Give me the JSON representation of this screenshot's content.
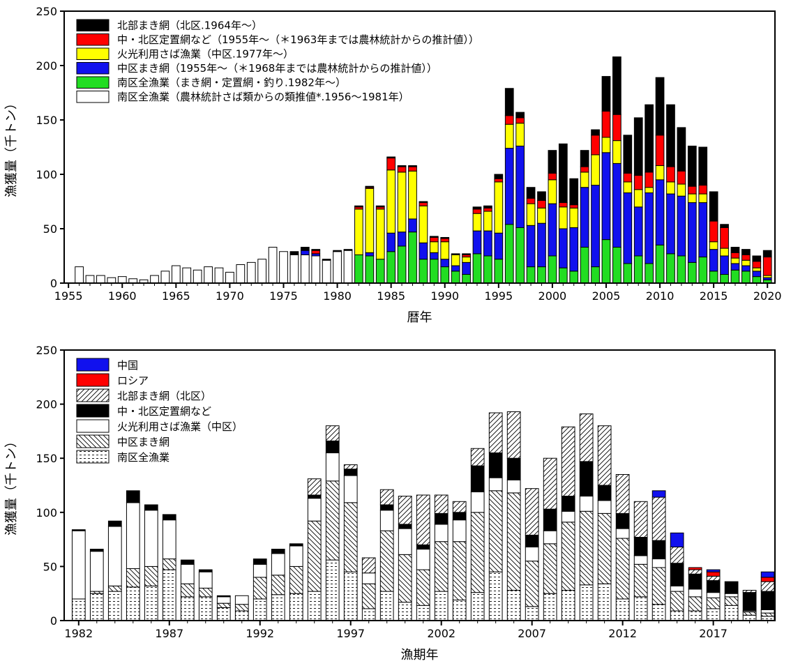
{
  "chart_data": [
    {
      "type": "bar",
      "stacked": true,
      "xlabel": "暦年",
      "ylabel": "漁獲量（千トン）",
      "ylim": [
        0,
        250
      ],
      "yticks": [
        0,
        50,
        100,
        150,
        200,
        250
      ],
      "xticks": [
        1955,
        1960,
        1965,
        1970,
        1975,
        1980,
        1985,
        1990,
        1995,
        2000,
        2005,
        2010,
        2015,
        2020
      ],
      "grid": false,
      "legend_position": "top-left",
      "x": [
        1955,
        1956,
        1957,
        1958,
        1959,
        1960,
        1961,
        1962,
        1963,
        1964,
        1965,
        1966,
        1967,
        1968,
        1969,
        1970,
        1971,
        1972,
        1973,
        1974,
        1975,
        1976,
        1977,
        1978,
        1979,
        1980,
        1981,
        1982,
        1983,
        1984,
        1985,
        1986,
        1987,
        1988,
        1989,
        1990,
        1991,
        1992,
        1993,
        1994,
        1995,
        1996,
        1997,
        1998,
        1999,
        2000,
        2001,
        2002,
        2003,
        2004,
        2005,
        2006,
        2007,
        2008,
        2009,
        2010,
        2011,
        2012,
        2013,
        2014,
        2015,
        2016,
        2017,
        2018,
        2019,
        2020
      ],
      "series": [
        {
          "name": "南区全漁業（農林統計さば類からの類推値*.1956～1981年）",
          "color": "#ffffff",
          "values": [
            0,
            15,
            7,
            7,
            5,
            6,
            4,
            3,
            7,
            11,
            16,
            14,
            12,
            15,
            14,
            10,
            17,
            19,
            22,
            33,
            29,
            26,
            26,
            25,
            21,
            29,
            30,
            0,
            0,
            0,
            0,
            0,
            0,
            0,
            0,
            0,
            0,
            0,
            0,
            0,
            0,
            0,
            0,
            0,
            0,
            0,
            0,
            0,
            0,
            0,
            0,
            0,
            0,
            0,
            0,
            0,
            0,
            0,
            0,
            0,
            0,
            0,
            0,
            0,
            0,
            0
          ]
        },
        {
          "name": "南区全漁業（まき網・定置網・釣り.1982年～）",
          "color": "#22dd22",
          "values": [
            0,
            0,
            0,
            0,
            0,
            0,
            0,
            0,
            0,
            0,
            0,
            0,
            0,
            0,
            0,
            0,
            0,
            0,
            0,
            0,
            0,
            0,
            0,
            0,
            0,
            0,
            0,
            26,
            25,
            22,
            29,
            34,
            47,
            22,
            22,
            15,
            11,
            8,
            27,
            25,
            22,
            54,
            51,
            15,
            15,
            25,
            14,
            11,
            33,
            15,
            40,
            33,
            18,
            25,
            18,
            35,
            27,
            25,
            19,
            24,
            11,
            8,
            12,
            11,
            6,
            3
          ]
        },
        {
          "name": "中区まき網（1955年～（＊1968年までは農林統計からの推計値））",
          "color": "#1111ee",
          "values": [
            0,
            0,
            0,
            0,
            0,
            0,
            0,
            0,
            0,
            0,
            0,
            0,
            0,
            0,
            0,
            0,
            0,
            0,
            0,
            0,
            0,
            0,
            4,
            2,
            0,
            0,
            0,
            0,
            3,
            0,
            17,
            13,
            12,
            15,
            6,
            7,
            5,
            11,
            21,
            23,
            24,
            70,
            75,
            38,
            40,
            48,
            36,
            40,
            55,
            75,
            80,
            77,
            65,
            45,
            65,
            60,
            55,
            55,
            55,
            50,
            20,
            17,
            6,
            5,
            5,
            2
          ]
        },
        {
          "name": "火光利用さば漁業（中区.1977年～）",
          "color": "#ffff00",
          "values": [
            0,
            0,
            0,
            0,
            0,
            0,
            0,
            0,
            0,
            0,
            0,
            0,
            0,
            0,
            0,
            0,
            0,
            0,
            0,
            0,
            0,
            0,
            0,
            0,
            0,
            0,
            0,
            42,
            59,
            46,
            58,
            55,
            44,
            34,
            10,
            16,
            10,
            5,
            16,
            18,
            47,
            22,
            21,
            20,
            14,
            22,
            20,
            18,
            14,
            28,
            14,
            21,
            10,
            16,
            5,
            13,
            11,
            11,
            8,
            8,
            7,
            7,
            5,
            5,
            3,
            2
          ]
        },
        {
          "name": "中・北区定置網など（1955年～（＊1963年までは農林統計からの推計値））",
          "color": "#ff0000",
          "values": [
            0,
            0,
            0,
            0,
            0,
            0,
            0,
            0,
            0,
            0,
            0,
            0,
            0,
            0,
            0,
            0,
            0,
            0,
            0,
            0,
            0,
            0,
            0,
            3,
            0,
            0,
            0,
            2,
            1,
            2,
            11,
            5,
            4,
            3,
            4,
            3,
            0,
            2,
            4,
            3,
            3,
            8,
            5,
            5,
            7,
            6,
            4,
            3,
            5,
            18,
            24,
            24,
            8,
            13,
            14,
            28,
            14,
            12,
            7,
            8,
            19,
            19,
            5,
            5,
            6,
            17
          ]
        },
        {
          "name": "北部まき網（北区.1964年～）",
          "color": "#000000",
          "values": [
            0,
            0,
            0,
            0,
            0,
            0,
            0,
            0,
            0,
            0,
            0,
            0,
            0,
            0,
            0,
            0,
            0,
            0,
            0,
            0,
            0,
            3,
            3,
            1,
            1,
            1,
            1,
            1,
            1,
            1,
            1,
            1,
            1,
            1,
            1,
            1,
            1,
            1,
            2,
            2,
            4,
            25,
            5,
            10,
            8,
            21,
            54,
            24,
            15,
            5,
            32,
            53,
            35,
            53,
            62,
            53,
            57,
            40,
            37,
            35,
            27,
            3,
            5,
            5,
            5,
            6
          ]
        }
      ]
    },
    {
      "type": "bar",
      "stacked": true,
      "xlabel": "漁期年",
      "ylabel": "漁獲量（千トン）",
      "ylim": [
        0,
        250
      ],
      "yticks": [
        0,
        50,
        100,
        150,
        200,
        250
      ],
      "xticks": [
        1982,
        1987,
        1992,
        1997,
        2002,
        2007,
        2012,
        2017
      ],
      "grid": false,
      "legend_position": "top-left",
      "x": [
        1982,
        1983,
        1984,
        1985,
        1986,
        1987,
        1988,
        1989,
        1990,
        1991,
        1992,
        1993,
        1994,
        1995,
        1996,
        1997,
        1998,
        1999,
        2000,
        2001,
        2002,
        2003,
        2004,
        2005,
        2006,
        2007,
        2008,
        2009,
        2010,
        2011,
        2012,
        2013,
        2014,
        2015,
        2016,
        2017,
        2018,
        2019,
        2020
      ],
      "series": [
        {
          "name": "南区全漁業",
          "pattern": "dots",
          "values": [
            20,
            25,
            27,
            31,
            32,
            47,
            22,
            22,
            12,
            9,
            20,
            24,
            25,
            27,
            56,
            45,
            11,
            27,
            17,
            14,
            27,
            19,
            26,
            45,
            28,
            13,
            25,
            28,
            33,
            34,
            20,
            22,
            15,
            9,
            9,
            11,
            14,
            5,
            4
          ]
        },
        {
          "name": "中区まき網",
          "pattern": "backhatch",
          "values": [
            0,
            2,
            5,
            17,
            18,
            10,
            12,
            8,
            4,
            6,
            20,
            18,
            25,
            65,
            73,
            64,
            23,
            56,
            44,
            33,
            46,
            54,
            74,
            75,
            90,
            42,
            46,
            63,
            68,
            65,
            56,
            30,
            34,
            18,
            13,
            10,
            8,
            3,
            3
          ]
        },
        {
          "name": "火光利用さば漁業（中区）",
          "pattern": "white",
          "values": [
            63,
            37,
            55,
            61,
            52,
            36,
            18,
            15,
            6,
            8,
            12,
            20,
            19,
            21,
            26,
            25,
            10,
            19,
            24,
            19,
            16,
            20,
            19,
            12,
            12,
            13,
            12,
            10,
            14,
            12,
            9,
            8,
            8,
            5,
            7,
            5,
            3,
            1,
            3
          ]
        },
        {
          "name": "中・北区定置網など",
          "pattern": "black",
          "values": [
            1,
            2,
            5,
            11,
            5,
            5,
            4,
            2,
            1,
            0,
            5,
            4,
            2,
            3,
            11,
            6,
            0,
            5,
            4,
            4,
            10,
            7,
            24,
            23,
            20,
            11,
            20,
            14,
            32,
            14,
            14,
            17,
            17,
            21,
            14,
            11,
            11,
            17,
            17
          ]
        },
        {
          "name": "北部まき網（北区）",
          "pattern": "forwardhatch",
          "values": [
            0,
            0,
            0,
            0,
            0,
            0,
            0,
            0,
            0,
            0,
            0,
            0,
            0,
            15,
            14,
            4,
            14,
            14,
            26,
            46,
            17,
            10,
            16,
            37,
            43,
            43,
            47,
            64,
            44,
            55,
            36,
            33,
            40,
            15,
            4,
            4,
            0,
            2,
            9
          ]
        },
        {
          "name": "ロシア",
          "color": "#ff0000",
          "values": [
            0,
            0,
            0,
            0,
            0,
            0,
            0,
            0,
            0,
            0,
            0,
            0,
            0,
            0,
            0,
            0,
            0,
            0,
            0,
            0,
            0,
            0,
            0,
            0,
            0,
            0,
            0,
            0,
            0,
            0,
            0,
            0,
            0,
            0,
            2,
            4,
            0,
            0,
            4
          ]
        },
        {
          "name": "中国",
          "color": "#1111ee",
          "values": [
            0,
            0,
            0,
            0,
            0,
            0,
            0,
            0,
            0,
            0,
            0,
            0,
            0,
            0,
            0,
            0,
            0,
            0,
            0,
            0,
            0,
            0,
            0,
            0,
            0,
            0,
            0,
            0,
            0,
            0,
            0,
            0,
            6,
            13,
            0,
            2,
            0,
            0,
            5
          ]
        }
      ]
    }
  ]
}
